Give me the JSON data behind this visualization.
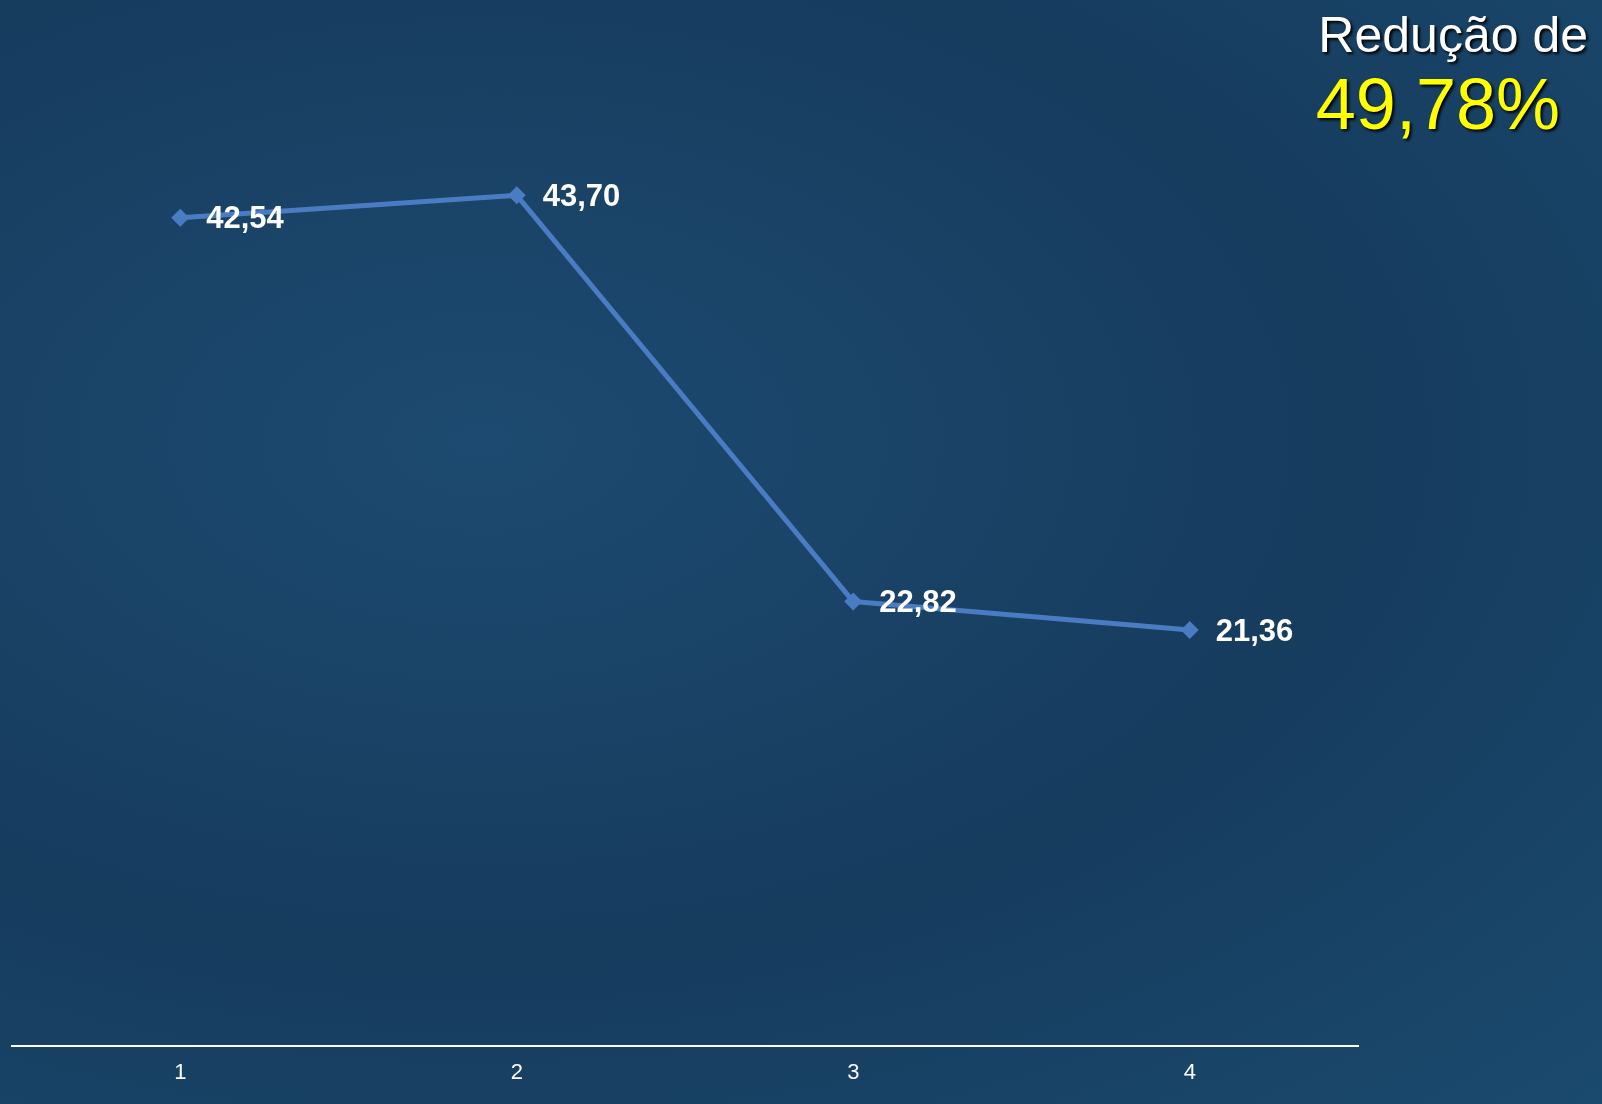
{
  "chart_data": {
    "type": "line",
    "categories": [
      "1",
      "2",
      "3",
      "4"
    ],
    "series": [
      {
        "color": "#4a7cc4",
        "values": [
          42.54,
          43.7,
          22.82,
          21.36
        ],
        "value_labels": [
          "42,54",
          "43,70",
          "22,82",
          "21,36"
        ]
      }
    ],
    "marker": "diamond",
    "legend": false,
    "grid": false,
    "tick_labels": "x",
    "annotations": [
      "Redução de",
      "49,78%"
    ]
  }
}
